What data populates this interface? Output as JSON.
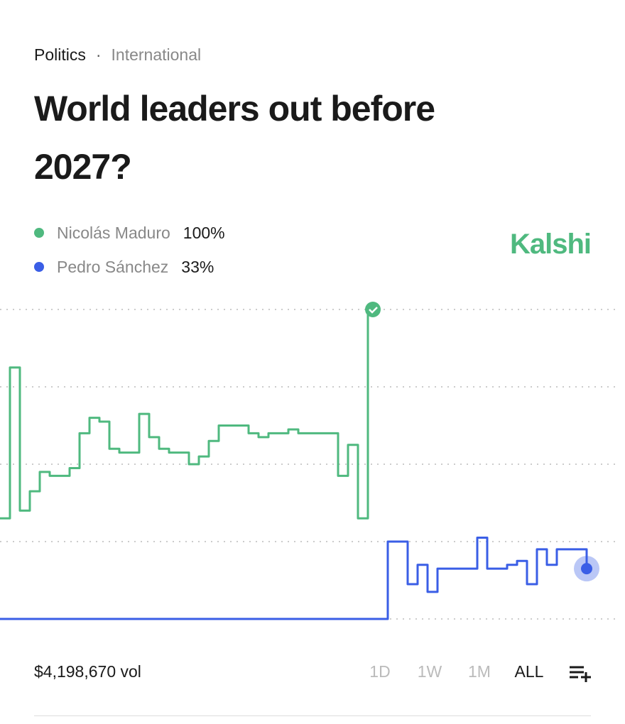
{
  "breadcrumb": [
    "Politics",
    "International"
  ],
  "header": {
    "title": "World leaders out before 2027?"
  },
  "brand": "Kalshi",
  "volume": "$4,198,670 vol",
  "ranges": [
    "1D",
    "1W",
    "1M",
    "ALL"
  ],
  "selected_range": 3,
  "chart_data": {
    "type": "line",
    "categories": [
      null,
      null,
      null,
      null,
      null,
      null,
      null,
      null,
      null,
      null,
      null,
      null,
      null,
      null,
      null,
      null,
      null,
      null,
      null,
      null,
      null,
      null,
      null,
      null,
      null,
      null,
      null,
      null,
      null,
      null,
      null,
      null,
      null,
      null,
      null,
      null,
      null,
      null,
      null,
      null,
      null,
      null,
      null,
      null,
      null,
      null,
      null,
      null,
      null,
      null,
      null,
      null,
      null,
      null,
      null,
      null,
      null,
      null,
      null,
      null
    ],
    "series": [
      {
        "name": "Nicolás Maduro",
        "color": "#4fb97f",
        "last_label": "100%",
        "values": [
          46,
          85,
          48,
          53,
          58,
          57,
          57,
          59,
          68,
          72,
          71,
          64,
          63,
          63,
          73,
          67,
          64,
          63,
          63,
          60,
          62,
          66,
          70,
          70,
          70,
          68,
          67,
          68,
          68,
          69,
          68,
          68,
          68,
          68,
          57,
          65,
          46,
          100,
          null,
          null,
          null,
          null,
          null,
          null,
          null,
          null,
          null,
          null,
          null,
          null,
          null,
          null,
          null,
          null,
          null,
          null,
          null,
          null,
          null,
          null
        ]
      },
      {
        "name": "Pedro Sánchez",
        "color": "#3a5ee6",
        "last_label": "33%",
        "values": [
          20,
          20,
          20,
          20,
          20,
          20,
          20,
          20,
          20,
          20,
          20,
          20,
          20,
          20,
          20,
          20,
          20,
          20,
          20,
          20,
          20,
          20,
          20,
          20,
          20,
          20,
          20,
          20,
          20,
          20,
          20,
          20,
          20,
          20,
          20,
          20,
          20,
          20,
          20,
          40,
          40,
          29,
          34,
          27,
          33,
          33,
          33,
          33,
          41,
          33,
          33,
          34,
          35,
          29,
          38,
          34,
          38,
          38,
          38,
          33
        ]
      }
    ],
    "ylim": [
      20,
      100
    ],
    "yticks": [
      20,
      40,
      60,
      80,
      100
    ],
    "grid": true
  }
}
